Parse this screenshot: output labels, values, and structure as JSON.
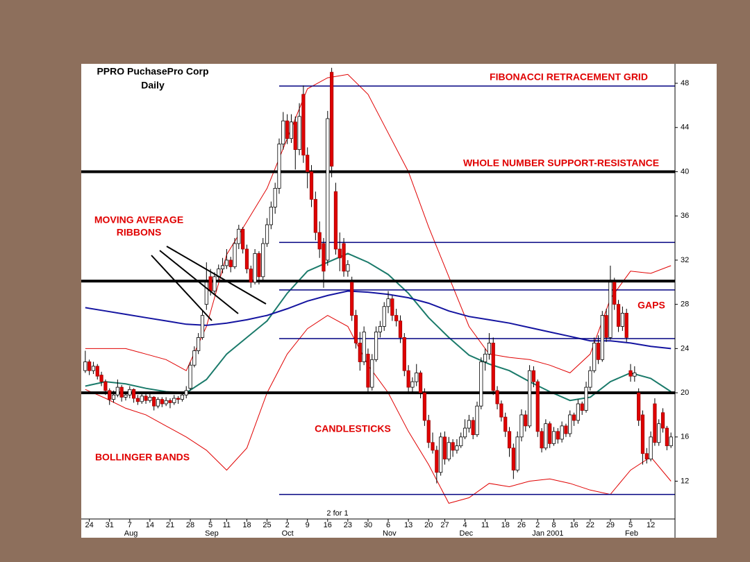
{
  "chart_data": {
    "type": "candlestick",
    "title": "PPRO PuchasePro Corp",
    "subtitle": "Daily",
    "annotations": [
      "FIBONACCI RETRACEMENT GRID",
      "WHOLE NUMBER SUPPORT-RESISTANCE",
      "MOVING AVERAGE",
      "RIBBONS",
      "GAPS",
      "CANDLESTICKS",
      "BOLLINGER BANDS",
      "2 for 1"
    ],
    "xlim": [
      -1,
      146
    ],
    "ylim": [
      8.58,
      49.76
    ],
    "yticks": [
      12,
      16,
      20,
      24,
      28,
      32,
      36,
      40,
      44,
      48
    ],
    "xticks": [
      {
        "value": 1,
        "label": "24"
      },
      {
        "value": 6,
        "label": "31"
      },
      {
        "value": 11,
        "label": "7"
      },
      {
        "value": 16,
        "label": "14"
      },
      {
        "value": 21,
        "label": "21"
      },
      {
        "value": 26,
        "label": "28"
      },
      {
        "value": 31,
        "label": "5"
      },
      {
        "value": 35,
        "label": "11"
      },
      {
        "value": 40,
        "label": "18"
      },
      {
        "value": 45,
        "label": "25"
      },
      {
        "value": 50,
        "label": "2"
      },
      {
        "value": 55,
        "label": "9"
      },
      {
        "value": 60,
        "label": "16"
      },
      {
        "value": 65,
        "label": "23"
      },
      {
        "value": 70,
        "label": "30"
      },
      {
        "value": 75,
        "label": "6"
      },
      {
        "value": 80,
        "label": "13"
      },
      {
        "value": 85,
        "label": "20"
      },
      {
        "value": 89,
        "label": "27"
      },
      {
        "value": 94,
        "label": "4"
      },
      {
        "value": 99,
        "label": "11"
      },
      {
        "value": 104,
        "label": "18"
      },
      {
        "value": 108,
        "label": "26"
      },
      {
        "value": 112,
        "label": "2"
      },
      {
        "value": 116,
        "label": "8"
      },
      {
        "value": 121,
        "label": "16"
      },
      {
        "value": 125,
        "label": "22"
      },
      {
        "value": 130,
        "label": "29"
      },
      {
        "value": 135,
        "label": "5"
      },
      {
        "value": 140,
        "label": "12"
      }
    ],
    "month_labels": [
      {
        "value": 11,
        "label": "Aug"
      },
      {
        "value": 31,
        "label": "Sep"
      },
      {
        "value": 50,
        "label": "Oct"
      },
      {
        "value": 75,
        "label": "Nov"
      },
      {
        "value": 94,
        "label": "Dec"
      },
      {
        "value": 112,
        "label": "Jan 2001"
      },
      {
        "value": 135,
        "label": "Feb"
      }
    ],
    "up_color": "#ffffff",
    "down_color": "#e00000",
    "ohlc": [
      [
        22.0,
        23.8,
        21.8,
        22.8
      ],
      [
        22.8,
        23.0,
        21.6,
        22.0
      ],
      [
        22.0,
        22.8,
        21.7,
        22.4
      ],
      [
        22.4,
        22.6,
        21.2,
        21.5
      ],
      [
        21.6,
        21.9,
        20.6,
        21.0
      ],
      [
        21.0,
        21.2,
        19.8,
        20.2
      ],
      [
        20.2,
        20.4,
        18.9,
        19.4
      ],
      [
        19.4,
        20.2,
        19.1,
        19.8
      ],
      [
        19.8,
        21.2,
        19.6,
        20.5
      ],
      [
        20.5,
        20.7,
        19.2,
        19.6
      ],
      [
        19.6,
        20.1,
        19.3,
        19.8
      ],
      [
        19.8,
        20.6,
        19.5,
        20.3
      ],
      [
        20.3,
        20.4,
        19.1,
        19.5
      ],
      [
        19.5,
        19.8,
        18.9,
        19.2
      ],
      [
        19.2,
        19.9,
        19.0,
        19.7
      ],
      [
        19.7,
        19.9,
        19.0,
        19.3
      ],
      [
        19.3,
        19.9,
        19.1,
        19.6
      ],
      [
        19.6,
        19.7,
        18.4,
        18.8
      ],
      [
        18.8,
        19.6,
        18.6,
        19.4
      ],
      [
        19.4,
        19.6,
        18.7,
        19.0
      ],
      [
        19.0,
        19.6,
        18.8,
        19.3
      ],
      [
        19.3,
        19.5,
        18.6,
        19.1
      ],
      [
        19.1,
        19.8,
        18.9,
        19.5
      ],
      [
        19.5,
        19.7,
        19.0,
        19.4
      ],
      [
        19.4,
        20.1,
        19.2,
        19.8
      ],
      [
        19.8,
        20.6,
        19.5,
        20.2
      ],
      [
        20.4,
        22.8,
        20.2,
        22.5
      ],
      [
        22.5,
        24.2,
        22.3,
        23.8
      ],
      [
        23.8,
        25.4,
        23.5,
        25.0
      ],
      [
        25.0,
        27.4,
        24.8,
        27.0
      ],
      [
        28.0,
        31.8,
        27.5,
        30.0
      ],
      [
        30.5,
        31.2,
        28.8,
        29.2
      ],
      [
        29.2,
        30.9,
        28.9,
        30.5
      ],
      [
        30.5,
        31.6,
        30.2,
        31.2
      ],
      [
        31.2,
        32.2,
        30.8,
        31.5
      ],
      [
        31.5,
        33.0,
        31.2,
        32.0
      ],
      [
        32.0,
        32.3,
        30.9,
        31.4
      ],
      [
        31.4,
        34.0,
        31.2,
        33.5
      ],
      [
        33.5,
        35.2,
        33.0,
        34.8
      ],
      [
        34.8,
        35.0,
        32.6,
        33.0
      ],
      [
        33.0,
        33.4,
        30.8,
        31.2
      ],
      [
        31.2,
        31.5,
        29.5,
        30.0
      ],
      [
        30.0,
        33.0,
        29.8,
        32.6
      ],
      [
        32.6,
        32.8,
        29.8,
        30.5
      ],
      [
        30.5,
        34.0,
        30.2,
        33.5
      ],
      [
        33.5,
        35.8,
        33.2,
        35.2
      ],
      [
        35.2,
        37.3,
        34.8,
        36.8
      ],
      [
        36.8,
        39.0,
        36.2,
        38.5
      ],
      [
        38.5,
        43.0,
        38.0,
        42.5
      ],
      [
        42.5,
        45.4,
        42.0,
        44.6
      ],
      [
        44.6,
        45.2,
        42.5,
        43.0
      ],
      [
        43.0,
        45.2,
        42.6,
        44.5
      ],
      [
        44.5,
        45.0,
        40.2,
        42.0
      ],
      [
        42.0,
        46.2,
        41.5,
        45.0
      ],
      [
        47.0,
        47.8,
        40.8,
        41.5
      ],
      [
        41.5,
        42.2,
        38.5,
        40.0
      ],
      [
        40.0,
        40.6,
        36.8,
        37.5
      ],
      [
        37.5,
        38.2,
        33.8,
        34.5
      ],
      [
        34.5,
        35.5,
        32.2,
        33.0
      ],
      [
        33.5,
        34.0,
        29.5,
        31.0
      ],
      [
        32.0,
        45.5,
        31.5,
        44.8
      ],
      [
        49.0,
        49.4,
        39.5,
        40.5
      ],
      [
        38.2,
        39.0,
        32.5,
        33.0
      ],
      [
        33.0,
        34.5,
        31.0,
        32.2
      ],
      [
        33.5,
        34.0,
        30.5,
        31.0
      ],
      [
        31.0,
        32.0,
        30.5,
        31.6
      ],
      [
        30.0,
        30.5,
        26.5,
        27.0
      ],
      [
        27.0,
        27.5,
        24.0,
        24.5
      ],
      [
        24.5,
        25.5,
        22.0,
        22.8
      ],
      [
        22.8,
        26.0,
        22.5,
        25.5
      ],
      [
        23.5,
        24.0,
        20.0,
        20.5
      ],
      [
        20.5,
        23.5,
        20.2,
        23.0
      ],
      [
        23.0,
        26.0,
        22.8,
        25.5
      ],
      [
        25.5,
        26.5,
        25.0,
        26.0
      ],
      [
        26.0,
        28.2,
        25.6,
        27.8
      ],
      [
        27.8,
        29.2,
        27.2,
        28.5
      ],
      [
        28.5,
        28.8,
        26.5,
        27.0
      ],
      [
        27.0,
        27.6,
        26.0,
        26.5
      ],
      [
        26.5,
        27.0,
        24.5,
        25.0
      ],
      [
        25.0,
        25.4,
        21.5,
        22.0
      ],
      [
        22.0,
        22.5,
        20.0,
        20.5
      ],
      [
        20.5,
        21.4,
        20.0,
        21.0
      ],
      [
        21.0,
        22.6,
        20.6,
        21.8
      ],
      [
        21.8,
        22.0,
        19.5,
        20.0
      ],
      [
        20.0,
        20.4,
        17.0,
        17.5
      ],
      [
        17.5,
        18.0,
        15.0,
        15.5
      ],
      [
        15.5,
        16.4,
        14.5,
        14.8
      ],
      [
        14.8,
        15.2,
        11.8,
        12.8
      ],
      [
        12.8,
        16.4,
        12.5,
        16.0
      ],
      [
        16.0,
        16.5,
        13.5,
        14.0
      ],
      [
        14.0,
        16.0,
        13.8,
        15.5
      ],
      [
        15.5,
        15.8,
        14.2,
        14.8
      ],
      [
        14.8,
        15.8,
        14.5,
        15.2
      ],
      [
        15.2,
        16.4,
        15.0,
        16.0
      ],
      [
        16.0,
        17.6,
        15.8,
        16.8
      ],
      [
        16.8,
        18.0,
        16.4,
        17.5
      ],
      [
        17.5,
        17.8,
        15.8,
        16.2
      ],
      [
        16.2,
        19.2,
        16.0,
        18.8
      ],
      [
        18.8,
        23.2,
        18.5,
        22.8
      ],
      [
        22.8,
        24.0,
        22.0,
        23.5
      ],
      [
        23.5,
        25.4,
        23.0,
        24.5
      ],
      [
        24.5,
        25.0,
        19.8,
        20.2
      ],
      [
        20.2,
        20.6,
        18.5,
        19.0
      ],
      [
        19.0,
        19.3,
        17.4,
        17.8
      ],
      [
        17.8,
        18.2,
        16.0,
        16.5
      ],
      [
        16.5,
        16.9,
        14.2,
        15.0
      ],
      [
        15.0,
        15.4,
        12.2,
        13.0
      ],
      [
        13.0,
        16.5,
        12.8,
        16.0
      ],
      [
        16.0,
        18.5,
        15.6,
        18.0
      ],
      [
        18.0,
        18.4,
        16.5,
        17.0
      ],
      [
        17.0,
        22.5,
        16.8,
        22.0
      ],
      [
        22.0,
        22.4,
        20.5,
        21.0
      ],
      [
        21.0,
        21.2,
        16.0,
        16.5
      ],
      [
        16.5,
        16.8,
        14.6,
        15.0
      ],
      [
        15.0,
        17.6,
        14.8,
        17.2
      ],
      [
        17.2,
        17.4,
        15.0,
        15.4
      ],
      [
        15.4,
        16.9,
        15.2,
        16.5
      ],
      [
        16.5,
        16.8,
        15.4,
        15.8
      ],
      [
        15.8,
        17.4,
        15.5,
        17.0
      ],
      [
        17.0,
        17.2,
        16.0,
        16.3
      ],
      [
        16.3,
        18.4,
        16.0,
        18.0
      ],
      [
        18.0,
        18.2,
        17.0,
        17.5
      ],
      [
        17.5,
        19.4,
        17.2,
        19.0
      ],
      [
        19.0,
        19.2,
        18.0,
        18.4
      ],
      [
        18.4,
        21.0,
        18.2,
        20.5
      ],
      [
        20.5,
        22.4,
        20.2,
        22.0
      ],
      [
        22.0,
        25.0,
        21.8,
        24.5
      ],
      [
        24.5,
        25.2,
        22.6,
        23.0
      ],
      [
        23.0,
        27.4,
        22.8,
        27.0
      ],
      [
        27.0,
        27.6,
        24.6,
        25.0
      ],
      [
        25.0,
        31.5,
        24.8,
        30.0
      ],
      [
        30.0,
        30.4,
        27.5,
        28.0
      ],
      [
        28.0,
        28.4,
        25.5,
        26.0
      ],
      [
        26.0,
        27.8,
        25.6,
        27.2
      ],
      [
        27.2,
        27.6,
        24.6,
        25.0
      ],
      [
        22.0,
        22.6,
        21.0,
        21.5
      ],
      [
        21.5,
        22.4,
        21.0,
        21.8
      ],
      [
        20.0,
        20.4,
        17.0,
        17.5
      ],
      [
        18.0,
        18.4,
        13.5,
        14.5
      ],
      [
        14.5,
        15.0,
        13.6,
        14.0
      ],
      [
        14.0,
        16.5,
        13.8,
        16.0
      ],
      [
        19.0,
        19.5,
        15.2,
        15.5
      ],
      [
        15.5,
        17.6,
        15.2,
        17.2
      ],
      [
        18.2,
        18.6,
        16.4,
        16.8
      ],
      [
        16.8,
        17.0,
        14.8,
        15.2
      ],
      [
        15.2,
        16.4,
        15.0,
        16.0
      ]
    ],
    "line_x": [
      0,
      5,
      10,
      15,
      20,
      25,
      30,
      35,
      40,
      45,
      50,
      55,
      60,
      65,
      70,
      75,
      80,
      85,
      90,
      95,
      100,
      105,
      110,
      115,
      120,
      125,
      130,
      135,
      140,
      145
    ],
    "bollinger": {
      "color": "#e00000",
      "upper": [
        24.0,
        24.0,
        24.0,
        23.5,
        23.0,
        22.0,
        26.0,
        32.5,
        35.5,
        38.5,
        43.0,
        47.5,
        48.5,
        48.8,
        47.0,
        43.5,
        40.0,
        35.0,
        30.5,
        26.0,
        23.5,
        23.2,
        23.0,
        22.5,
        21.8,
        23.5,
        28.5,
        31.0,
        30.8,
        31.5
      ],
      "lower": [
        20.3,
        19.5,
        18.6,
        18.0,
        17.0,
        16.0,
        14.8,
        13.0,
        15.0,
        20.0,
        23.5,
        25.8,
        27.0,
        26.0,
        22.5,
        20.0,
        16.5,
        13.5,
        10.0,
        10.5,
        11.8,
        11.5,
        12.0,
        12.2,
        11.8,
        11.2,
        10.8,
        13.0,
        14.2,
        12.0
      ]
    },
    "moving_averages": [
      {
        "color": "#1a7a6a",
        "values": [
          20.6,
          21.0,
          20.8,
          20.4,
          20.1,
          20.0,
          21.2,
          23.5,
          25.0,
          26.5,
          29.0,
          31.0,
          31.8,
          32.6,
          31.8,
          30.7,
          29.0,
          26.8,
          25.0,
          23.4,
          22.6,
          22.0,
          21.0,
          20.1,
          19.3,
          19.6,
          21.0,
          21.8,
          21.3,
          20.1
        ]
      },
      {
        "color": "#1414a0",
        "values": [
          27.7,
          27.4,
          27.1,
          26.8,
          26.5,
          26.2,
          26.1,
          26.3,
          26.6,
          27.0,
          27.6,
          28.3,
          28.8,
          29.2,
          29.1,
          28.9,
          28.6,
          28.1,
          27.4,
          26.9,
          26.6,
          26.3,
          25.9,
          25.5,
          25.1,
          24.7,
          24.7,
          24.5,
          24.2,
          24.0
        ]
      }
    ],
    "support_resistance": {
      "color": "#000000",
      "levels": [
        40,
        30.1,
        20
      ]
    },
    "fibonacci": {
      "color": "#000080",
      "x_start": 48,
      "levels": [
        47.75,
        33.6,
        29.3,
        24.9,
        10.8
      ]
    }
  }
}
